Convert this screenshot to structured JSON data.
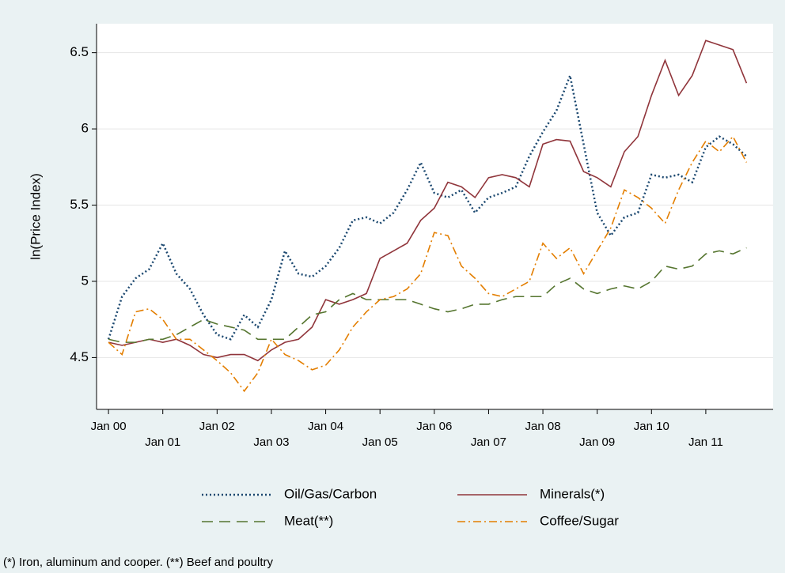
{
  "chart_data": {
    "type": "line",
    "y_label": "ln(Price Index)",
    "note": "(*) Iron, aluminum and cooper. (**) Beef and poultry",
    "x": [
      2000,
      2000.25,
      2000.5,
      2000.75,
      2001,
      2001.25,
      2001.5,
      2001.75,
      2002,
      2002.25,
      2002.5,
      2002.75,
      2003,
      2003.25,
      2003.5,
      2003.75,
      2004,
      2004.25,
      2004.5,
      2004.75,
      2005,
      2005.25,
      2005.5,
      2005.75,
      2006,
      2006.25,
      2006.5,
      2006.75,
      2007,
      2007.25,
      2007.5,
      2007.75,
      2008,
      2008.25,
      2008.5,
      2008.75,
      2009,
      2009.25,
      2009.5,
      2009.75,
      2010,
      2010.25,
      2010.5,
      2010.75,
      2011,
      2011.25,
      2011.5,
      2011.75
    ],
    "series": [
      {
        "name": "Oil/Gas/Carbon",
        "color": "#1a476f",
        "style": "dotted",
        "values": [
          4.62,
          4.9,
          5.02,
          5.08,
          5.25,
          5.05,
          4.95,
          4.78,
          4.65,
          4.62,
          4.78,
          4.7,
          4.88,
          5.2,
          5.05,
          5.03,
          5.1,
          5.22,
          5.4,
          5.42,
          5.38,
          5.45,
          5.6,
          5.78,
          5.58,
          5.55,
          5.6,
          5.45,
          5.55,
          5.58,
          5.62,
          5.82,
          5.98,
          6.12,
          6.35,
          5.9,
          5.45,
          5.3,
          5.42,
          5.45,
          5.7,
          5.68,
          5.7,
          5.65,
          5.88,
          5.95,
          5.9,
          5.82
        ]
      },
      {
        "name": "Minerals(*)",
        "color": "#90353b",
        "style": "solid",
        "values": [
          4.6,
          4.58,
          4.6,
          4.62,
          4.6,
          4.62,
          4.58,
          4.52,
          4.5,
          4.52,
          4.52,
          4.48,
          4.55,
          4.6,
          4.62,
          4.7,
          4.88,
          4.85,
          4.88,
          4.92,
          5.15,
          5.2,
          5.25,
          5.4,
          5.48,
          5.65,
          5.62,
          5.55,
          5.68,
          5.7,
          5.68,
          5.62,
          5.9,
          5.93,
          5.92,
          5.72,
          5.68,
          5.62,
          5.85,
          5.95,
          6.22,
          6.45,
          6.22,
          6.35,
          6.58,
          6.55,
          6.52,
          6.3
        ]
      },
      {
        "name": "Meat(**)",
        "color": "#55752f",
        "style": "longdash",
        "values": [
          4.62,
          4.6,
          4.6,
          4.62,
          4.62,
          4.65,
          4.7,
          4.75,
          4.72,
          4.7,
          4.68,
          4.62,
          4.62,
          4.62,
          4.7,
          4.78,
          4.8,
          4.88,
          4.92,
          4.88,
          4.88,
          4.88,
          4.88,
          4.85,
          4.82,
          4.8,
          4.82,
          4.85,
          4.85,
          4.88,
          4.9,
          4.9,
          4.9,
          4.98,
          5.02,
          4.95,
          4.92,
          4.95,
          4.97,
          4.95,
          5.0,
          5.1,
          5.08,
          5.1,
          5.18,
          5.2,
          5.18,
          5.22
        ]
      },
      {
        "name": "Coffee/Sugar",
        "color": "#e37e00",
        "style": "dashdot",
        "values": [
          4.6,
          4.52,
          4.8,
          4.82,
          4.75,
          4.62,
          4.62,
          4.55,
          4.48,
          4.4,
          4.28,
          4.4,
          4.62,
          4.52,
          4.48,
          4.42,
          4.45,
          4.55,
          4.7,
          4.8,
          4.88,
          4.9,
          4.95,
          5.05,
          5.32,
          5.3,
          5.1,
          5.02,
          4.92,
          4.9,
          4.95,
          5.0,
          5.25,
          5.15,
          5.22,
          5.05,
          5.2,
          5.35,
          5.6,
          5.55,
          5.48,
          5.38,
          5.6,
          5.78,
          5.92,
          5.85,
          5.95,
          5.78
        ]
      }
    ],
    "xlim": [
      1999.78,
      2012.24
    ],
    "xticks": [
      {
        "value": 2000,
        "label": "Jan 00"
      },
      {
        "value": 2001,
        "label": "Jan 01"
      },
      {
        "value": 2002,
        "label": "Jan 02"
      },
      {
        "value": 2003,
        "label": "Jan 03"
      },
      {
        "value": 2004,
        "label": "Jan 04"
      },
      {
        "value": 2005,
        "label": "Jan 05"
      },
      {
        "value": 2006,
        "label": "Jan 06"
      },
      {
        "value": 2007,
        "label": "Jan 07"
      },
      {
        "value": 2008,
        "label": "Jan 08"
      },
      {
        "value": 2009,
        "label": "Jan 09"
      },
      {
        "value": 2010,
        "label": "Jan 10"
      },
      {
        "value": 2011,
        "label": "Jan 11"
      }
    ],
    "ylim": [
      4.16,
      6.69
    ],
    "yticks": [
      4.5,
      5,
      5.5,
      6,
      6.5
    ],
    "grid": true,
    "legend": "bottom"
  }
}
